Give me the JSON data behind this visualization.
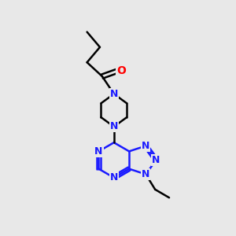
{
  "bg_color": "#e8e8e8",
  "nitrogen_color": "#1a1aff",
  "carbon_color": "#000000",
  "oxygen_color": "#ff0000",
  "lw": 1.8,
  "figsize": [
    3.0,
    3.0
  ],
  "dpi": 100,
  "xlim": [
    0,
    10
  ],
  "ylim": [
    0,
    10
  ],
  "label_fontsize": 9,
  "label_bg": "#e8e8e8"
}
